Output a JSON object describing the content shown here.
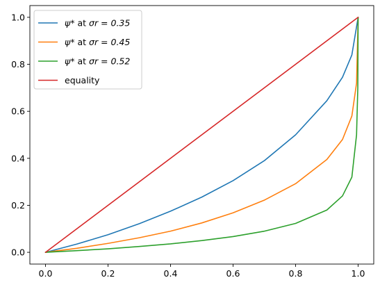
{
  "chart_data": {
    "type": "line",
    "title": "",
    "xlabel": "",
    "ylabel": "",
    "xlim": [
      -0.05,
      1.05
    ],
    "ylim": [
      -0.05,
      1.05
    ],
    "xticks": [
      0.0,
      0.2,
      0.4,
      0.6,
      0.8,
      1.0
    ],
    "yticks": [
      0.0,
      0.2,
      0.4,
      0.6,
      0.8,
      1.0
    ],
    "xtick_labels": [
      "0.0",
      "0.2",
      "0.4",
      "0.6",
      "0.8",
      "1.0"
    ],
    "ytick_labels": [
      "0.0",
      "0.2",
      "0.4",
      "0.6",
      "0.8",
      "1.0"
    ],
    "grid": false,
    "legend_position": "top-left",
    "series": [
      {
        "name_prefix": "ψ*",
        "name_mid": " at ",
        "name_suffix": "σr = 0.35",
        "color": "#1f77b4",
        "x": [
          0.0,
          0.1,
          0.2,
          0.3,
          0.4,
          0.5,
          0.6,
          0.7,
          0.8,
          0.9,
          0.95,
          0.98,
          1.0
        ],
        "y": [
          0.0,
          0.035,
          0.075,
          0.122,
          0.175,
          0.235,
          0.305,
          0.39,
          0.5,
          0.645,
          0.745,
          0.84,
          1.0
        ]
      },
      {
        "name_prefix": "ψ*",
        "name_mid": " at ",
        "name_suffix": "σr = 0.45",
        "color": "#ff7f0e",
        "x": [
          0.0,
          0.1,
          0.2,
          0.3,
          0.4,
          0.5,
          0.6,
          0.7,
          0.8,
          0.9,
          0.95,
          0.98,
          0.995,
          1.0
        ],
        "y": [
          0.0,
          0.017,
          0.038,
          0.062,
          0.09,
          0.125,
          0.168,
          0.222,
          0.292,
          0.395,
          0.48,
          0.58,
          0.72,
          1.0
        ]
      },
      {
        "name_prefix": "ψ*",
        "name_mid": " at ",
        "name_suffix": "σr = 0.52",
        "color": "#2ca02c",
        "x": [
          0.0,
          0.1,
          0.2,
          0.3,
          0.4,
          0.5,
          0.6,
          0.7,
          0.8,
          0.9,
          0.95,
          0.98,
          0.995,
          0.999,
          1.0
        ],
        "y": [
          0.0,
          0.007,
          0.015,
          0.025,
          0.036,
          0.05,
          0.067,
          0.09,
          0.123,
          0.18,
          0.24,
          0.32,
          0.5,
          0.7,
          1.0
        ]
      },
      {
        "name": "equality",
        "color": "#d62728",
        "x": [
          0.0,
          1.0
        ],
        "y": [
          0.0,
          1.0
        ]
      }
    ]
  }
}
